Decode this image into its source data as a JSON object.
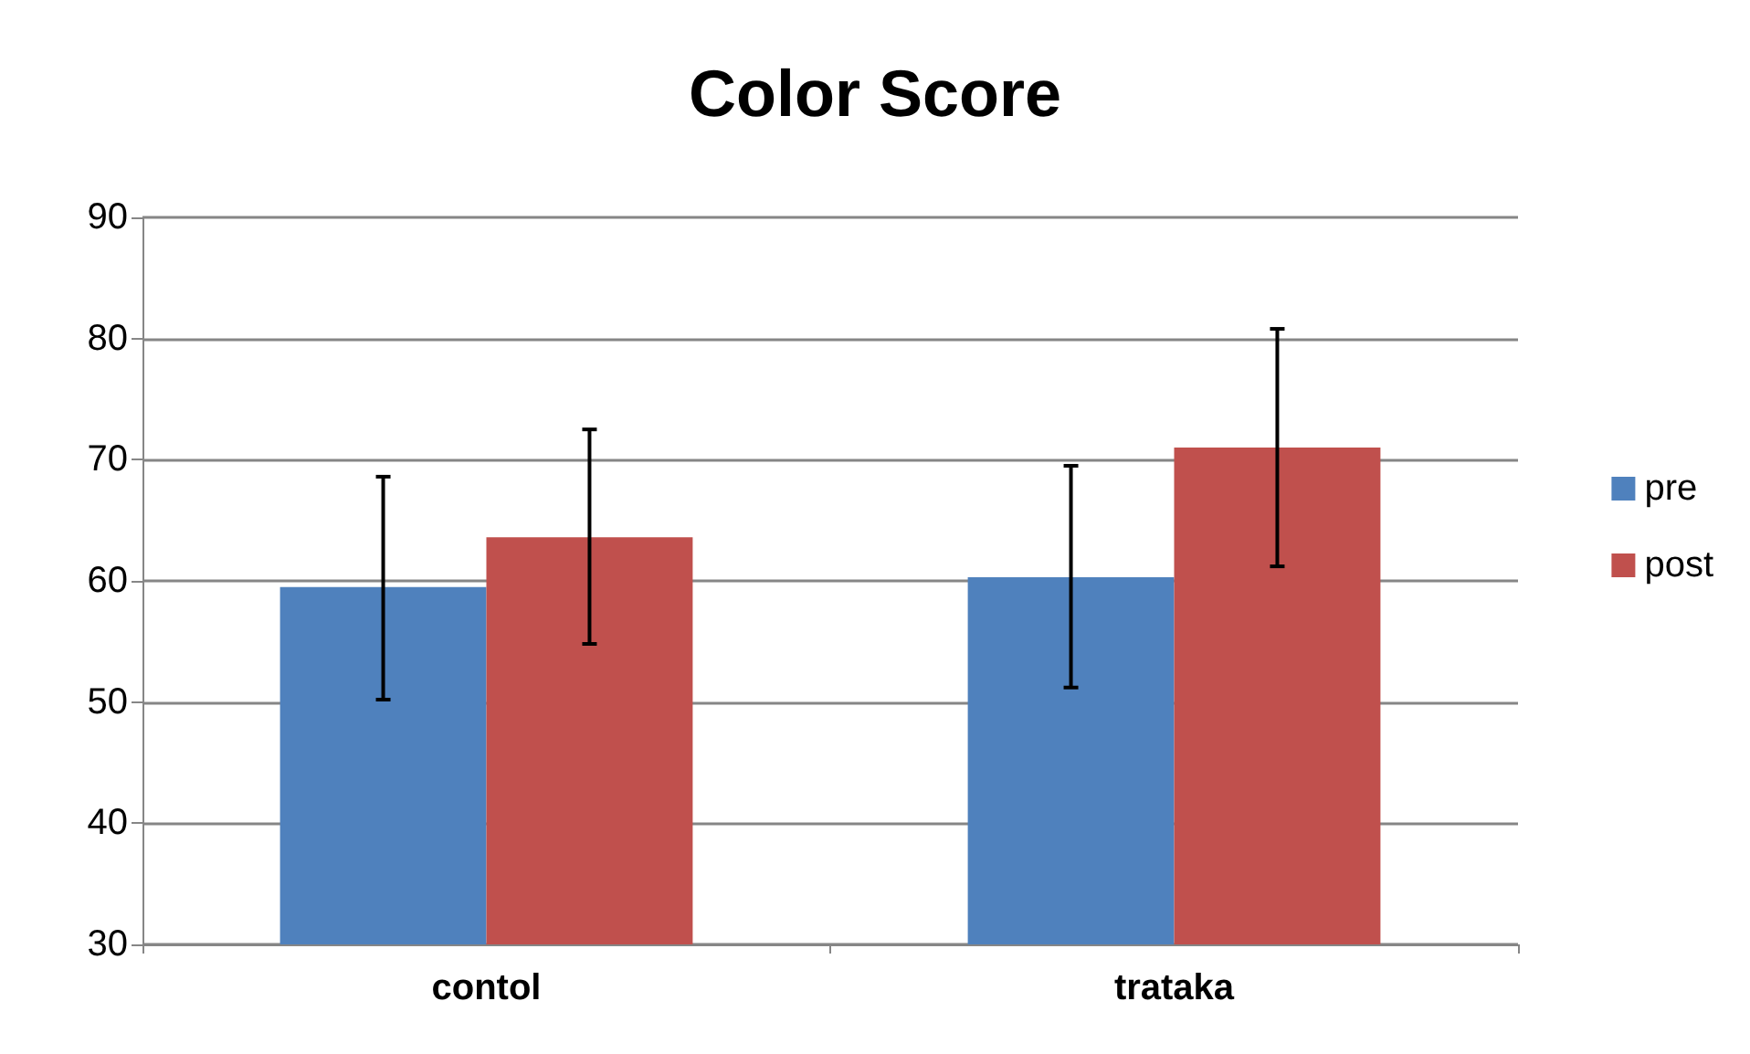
{
  "chart_data": {
    "type": "bar",
    "title": "Color Score",
    "categories": [
      "contol",
      "trataka"
    ],
    "series": [
      {
        "name": "pre",
        "color": "#4f81bd",
        "values": [
          59.5,
          60.3
        ],
        "errors": [
          [
            50.2,
            68.6
          ],
          [
            51.2,
            69.5
          ]
        ]
      },
      {
        "name": "post",
        "color": "#c0504d",
        "values": [
          63.6,
          71.0
        ],
        "errors": [
          [
            54.8,
            72.5
          ],
          [
            61.2,
            80.8
          ]
        ]
      }
    ],
    "ylim": [
      30,
      90
    ],
    "yticks": [
      30,
      40,
      50,
      60,
      70,
      80,
      90
    ],
    "grid": "y",
    "legend": "right"
  }
}
